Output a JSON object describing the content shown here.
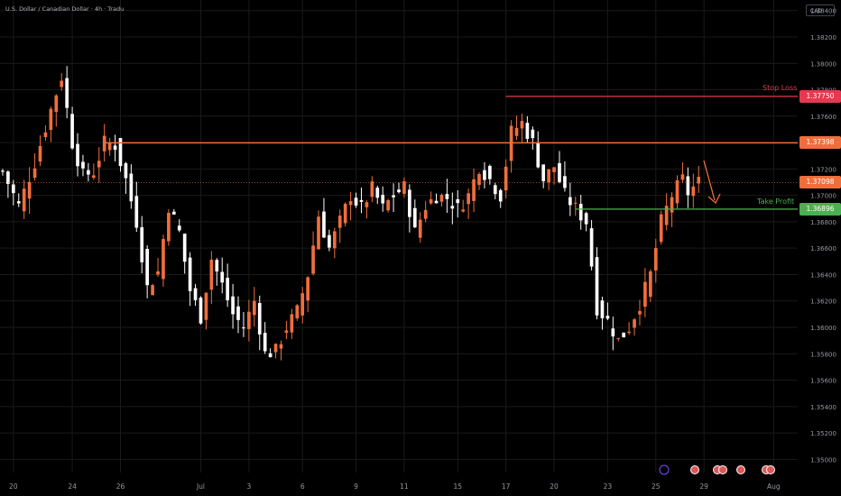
{
  "header": {
    "title": "U.S. Dollar / Canadian Dollar · 4h · Tradu",
    "currency": "CAD"
  },
  "levels": {
    "stop_loss": {
      "label": "Stop Loss",
      "price": "1.37750",
      "value": 1.3775,
      "color": "#e53950"
    },
    "resistance": {
      "price": "1.37398",
      "value": 1.37398,
      "color": "#f06e3c"
    },
    "current": {
      "price": "1.37098",
      "value": 1.37098,
      "color": "#f06e3c"
    },
    "take_profit": {
      "label": "Take Profit",
      "price": "1.36896",
      "value": 1.36896,
      "color": "#4caf50"
    }
  },
  "colors": {
    "up": "#f06e3c",
    "down": "#ffffff",
    "grid": "#1a1a1a",
    "axis_text": "#9598a1"
  },
  "chart_data": {
    "type": "candlestick",
    "y_ticks": [
      "1.38400",
      "1.38200",
      "1.38000",
      "1.37800",
      "1.37600",
      "1.37400",
      "1.37200",
      "1.37000",
      "1.36800",
      "1.36600",
      "1.36400",
      "1.36200",
      "1.36000",
      "1.35800",
      "1.35600",
      "1.35400",
      "1.35200",
      "1.35000"
    ],
    "y_tick_values": [
      1.384,
      1.382,
      1.38,
      1.378,
      1.376,
      1.374,
      1.372,
      1.37,
      1.368,
      1.366,
      1.364,
      1.362,
      1.36,
      1.358,
      1.356,
      1.354,
      1.352,
      1.35
    ],
    "ylim": [
      1.349,
      1.3848
    ],
    "x_ticks": [
      "20",
      "24",
      "26",
      "Jul",
      "3",
      "6",
      "9",
      "11",
      "15",
      "17",
      "20",
      "23",
      "25",
      "29",
      "Aug"
    ],
    "x_tick_index": [
      2,
      13,
      22,
      37,
      46,
      56,
      66,
      75,
      85,
      94,
      103,
      113,
      122,
      131,
      144
    ],
    "bar_count": 149,
    "anchors": [
      [
        0,
        1.3718
      ],
      [
        3,
        1.3692
      ],
      [
        6,
        1.3725
      ],
      [
        9,
        1.3765
      ],
      [
        11,
        1.379
      ],
      [
        13,
        1.374
      ],
      [
        15,
        1.3715
      ],
      [
        17,
        1.3718
      ],
      [
        19,
        1.374
      ],
      [
        21,
        1.3738
      ],
      [
        23,
        1.3712
      ],
      [
        25,
        1.368
      ],
      [
        27,
        1.363
      ],
      [
        29,
        1.3642
      ],
      [
        31,
        1.3692
      ],
      [
        33,
        1.3672
      ],
      [
        35,
        1.3628
      ],
      [
        37,
        1.3608
      ],
      [
        39,
        1.3652
      ],
      [
        41,
        1.3632
      ],
      [
        43,
        1.361
      ],
      [
        45,
        1.36
      ],
      [
        47,
        1.362
      ],
      [
        49,
        1.358
      ],
      [
        51,
        1.3582
      ],
      [
        53,
        1.36
      ],
      [
        55,
        1.3612
      ],
      [
        57,
        1.364
      ],
      [
        59,
        1.3685
      ],
      [
        61,
        1.366
      ],
      [
        63,
        1.368
      ],
      [
        65,
        1.37
      ],
      [
        67,
        1.369
      ],
      [
        69,
        1.3705
      ],
      [
        71,
        1.369
      ],
      [
        73,
        1.37
      ],
      [
        75,
        1.3706
      ],
      [
        77,
        1.3672
      ],
      [
        79,
        1.3692
      ],
      [
        81,
        1.37
      ],
      [
        83,
        1.3698
      ],
      [
        85,
        1.369
      ],
      [
        87,
        1.37
      ],
      [
        89,
        1.3722
      ],
      [
        91,
        1.3712
      ],
      [
        93,
        1.37
      ],
      [
        95,
        1.3748
      ],
      [
        97,
        1.3755
      ],
      [
        99,
        1.374
      ],
      [
        101,
        1.3712
      ],
      [
        103,
        1.3722
      ],
      [
        105,
        1.37
      ],
      [
        107,
        1.369
      ],
      [
        109,
        1.368
      ],
      [
        111,
        1.3615
      ],
      [
        113,
        1.3605
      ],
      [
        115,
        1.359
      ],
      [
        117,
        1.36
      ],
      [
        119,
        1.3618
      ],
      [
        121,
        1.364
      ],
      [
        123,
        1.368
      ],
      [
        125,
        1.37
      ],
      [
        127,
        1.3712
      ],
      [
        128,
        1.3702
      ],
      [
        130,
        1.371
      ]
    ]
  }
}
